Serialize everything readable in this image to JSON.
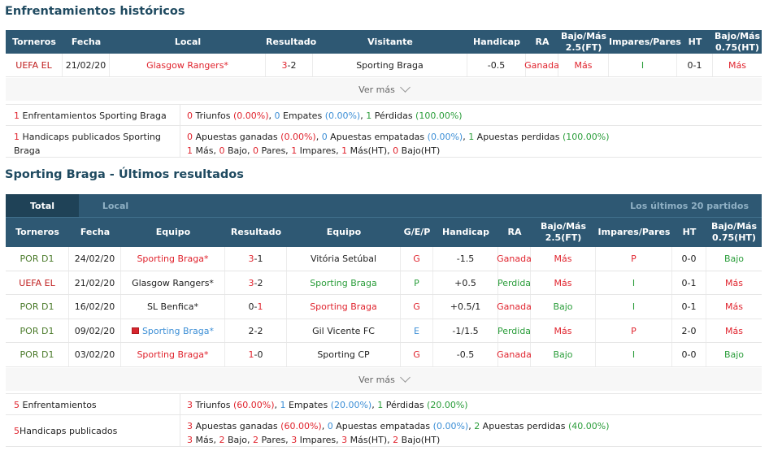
{
  "h2h": {
    "title": "Enfrentamientos históricos",
    "headers": [
      "Torneros",
      "Fecha",
      "Local",
      "Resultado",
      "Visitante",
      "Handicap",
      "RA",
      "Bajo/Más 2.5(FT)",
      "Impares/Pares",
      "HT",
      "Bajo/Más 0.75(HT)"
    ],
    "rows": [
      {
        "league": "UEFA EL",
        "date": "21/02/20",
        "home": "Glasgow Rangers*",
        "score_h": "3",
        "score_sep": "-",
        "score_a": "2",
        "away": "Sporting Braga",
        "handicap": "-0.5",
        "ra": "Ganada",
        "ou": "Más",
        "oe": "I",
        "ht": "0-1",
        "ou_ht": "Más"
      }
    ],
    "more": "Ver más",
    "summary": {
      "line1_label_num": "1",
      "line1_label": " Enfrentamientos Sporting Braga",
      "w": "0",
      "w_txt": " Triunfos ",
      "w_pct": "(0.00%)",
      "d": "0",
      "d_txt": " Empates ",
      "d_pct": "(0.00%)",
      "l": "1",
      "l_txt": " Pérdidas ",
      "l_pct": "(100.00%)",
      "line2_label_num": "1",
      "line2_label": " Handicaps publicados Sporting Braga",
      "aw": "0",
      "aw_txt": " Apuestas ganadas ",
      "aw_pct": "(0.00%)",
      "ad": "0",
      "ad_txt": " Apuestas empatadas ",
      "ad_pct": "(0.00%)",
      "al": "1",
      "al_txt": " Apuestas perdidas ",
      "al_pct": "(100.00%)",
      "o": "1",
      "o_txt": " Más, ",
      "u": "0",
      "u_txt": " Bajo, ",
      "p": "0",
      "p_txt": " Pares, ",
      "i": "1",
      "i_txt": " Impares, ",
      "oht": "1",
      "oht_txt": " Más(HT), ",
      "uht": "0",
      "uht_txt": " Bajo(HT)"
    }
  },
  "recent": {
    "title": "Sporting Braga - Últimos resultados",
    "tabs": {
      "active": "Total",
      "other": "Local",
      "right": "Los últimos 20 partidos"
    },
    "headers": [
      "Torneros",
      "Fecha",
      "Equipo",
      "Resultado",
      "Equipo",
      "G/E/P",
      "Handicap",
      "RA",
      "Bajo/Más 2.5(FT)",
      "Impares/Pares",
      "HT",
      "Bajo/Más 0.75(HT)"
    ],
    "rows": [
      {
        "league": "POR D1",
        "date": "24/02/20",
        "home": "Sporting Braga*",
        "sh": "3",
        "sa": "1",
        "away": "Vitória Setúbal",
        "gep": "G",
        "hc": "-1.5",
        "ra": "Ganada",
        "ou": "Más",
        "oe": "P",
        "ht": "0-0",
        "ouht": "Bajo"
      },
      {
        "league": "UEFA EL",
        "date": "21/02/20",
        "home": "Glasgow Rangers*",
        "sh": "3",
        "sa": "2",
        "away": "Sporting Braga",
        "gep": "P",
        "hc": "+0.5",
        "ra": "Perdida",
        "ou": "Más",
        "oe": "I",
        "ht": "0-1",
        "ouht": "Más"
      },
      {
        "league": "POR D1",
        "date": "16/02/20",
        "home": "SL Benfica*",
        "sh": "0",
        "sa": "1",
        "away": "Sporting Braga",
        "gep": "G",
        "hc": "+0.5/1",
        "ra": "Ganada",
        "ou": "Bajo",
        "oe": "I",
        "ht": "0-1",
        "ouht": "Más"
      },
      {
        "league": "POR D1",
        "date": "09/02/20",
        "home": "Sporting Braga*",
        "sh": "2",
        "sa": "2",
        "away": "Gil Vicente FC",
        "gep": "E",
        "hc": "-1/1.5",
        "ra": "Perdida",
        "ou": "Más",
        "oe": "P",
        "ht": "2-0",
        "ouht": "Más"
      },
      {
        "league": "POR D1",
        "date": "03/02/20",
        "home": "Sporting Braga*",
        "sh": "1",
        "sa": "0",
        "away": "Sporting CP",
        "gep": "G",
        "hc": "-0.5",
        "ra": "Ganada",
        "ou": "Bajo",
        "oe": "I",
        "ht": "0-0",
        "ouht": "Bajo"
      }
    ],
    "more": "Ver más",
    "summary": {
      "line1_num": "5",
      "line1_label": " Enfrentamientos",
      "w": "3",
      "w_txt": " Triunfos ",
      "w_pct": "(60.00%)",
      "d": "1",
      "d_txt": " Empates ",
      "d_pct": "(20.00%)",
      "l": "1",
      "l_txt": " Pérdidas ",
      "l_pct": "(20.00%)",
      "line2_num": "5",
      "line2_label": " Handicaps publicados",
      "aw": "3",
      "aw_txt": " Apuestas ganadas ",
      "aw_pct": "(60.00%)",
      "ad": "0",
      "ad_txt": " Apuestas empatadas ",
      "ad_pct": "(0.00%)",
      "al": "2",
      "al_txt": " Apuestas perdidas ",
      "al_pct": "(40.00%)",
      "o": "3",
      "o_txt": " Más, ",
      "u": "2",
      "u_txt": " Bajo, ",
      "p": "2",
      "p_txt": " Pares, ",
      "i": "3",
      "i_txt": " Impares, ",
      "oht": "3",
      "oht_txt": " Más(HT), ",
      "uht": "2",
      "uht_txt": " Bajo(HT)"
    }
  }
}
